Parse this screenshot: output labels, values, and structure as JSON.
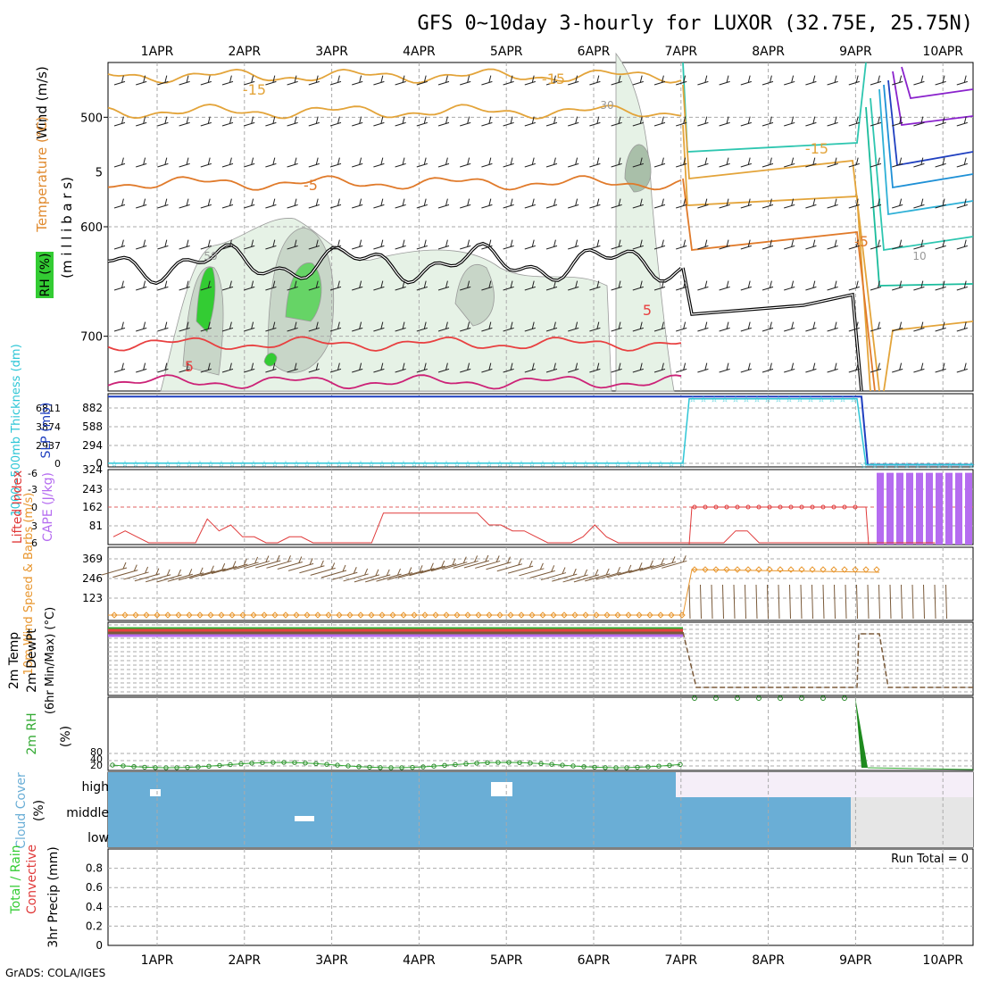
{
  "title": "GFS 0~10day 3-hourly for LUXOR (32.75E, 25.75N)",
  "credit": "GrADS: COLA/IGES",
  "colors": {
    "grid": "#aaaaaa",
    "rh_green": "#33cc33",
    "pale_green": "#e6f2e6",
    "mid_gray_green": "#c8d6c8",
    "thickness": "#2ec6d6",
    "slp": "#1f3fbf",
    "lifted": "#e03a3a",
    "cape": "#b56cf0",
    "wind_speed": "#e8962e",
    "barb": "#7a5a3a",
    "cloud": "#6aaed6",
    "precip_total": "#33cc33",
    "precip_conv": "#e03a3a"
  },
  "chart_data": [
    {
      "type": "line",
      "panel": "upper_air",
      "x_labels": [
        "1APR",
        "2APR",
        "3APR",
        "4APR",
        "5APR",
        "6APR",
        "7APR",
        "8APR",
        "9APR",
        "10APR"
      ],
      "ylabel_parts": [
        "Wind (m/s)",
        "Temperature (°C)",
        "RH (%)",
        "(m i l l i b a r s)"
      ],
      "y_ticks": [
        "500",
        "600",
        "700"
      ],
      "contour_labels": [
        "-15",
        "-15",
        "-15",
        "-5",
        "-5",
        "5",
        "5",
        "30",
        "50",
        "10"
      ],
      "ylim": [
        450,
        750
      ],
      "y_reversed": true,
      "grid": true
    },
    {
      "type": "line",
      "panel": "thickness_slp",
      "ylabel_parts": [
        "1000~500mb Thickness (dm)",
        "SLP (mb)"
      ],
      "left_ticks": [
        "6811",
        "3874",
        "2937",
        "0"
      ],
      "right_ticks": [
        "882",
        "588",
        "294",
        "0"
      ],
      "series": [
        {
          "name": "SLP",
          "values_pct": [
            0.96,
            0.96,
            0.96,
            0.96,
            0.96,
            0.96,
            0.96,
            0.96,
            0.96,
            0.03,
            0.03
          ]
        },
        {
          "name": "Thickness",
          "values_pct": [
            0.05,
            0.05,
            0.05,
            0.05,
            0.05,
            0.05,
            0.05,
            0.93,
            0.93,
            0.03,
            0.03
          ]
        }
      ]
    },
    {
      "type": "bar",
      "panel": "cape_li",
      "ylabel_parts": [
        "Lifted Index",
        "CAPE (J/kg)"
      ],
      "left_ticks": [
        "-6",
        "-3",
        "0",
        "3",
        "6"
      ],
      "right_ticks": [
        "324",
        "243",
        "162",
        "81"
      ],
      "lifted_index": [
        5,
        4,
        5,
        6,
        6,
        6,
        6,
        6,
        2,
        4,
        3,
        5,
        5,
        6,
        6,
        5,
        5,
        6,
        6,
        6,
        6,
        6,
        6,
        1,
        1,
        1,
        1,
        1,
        1,
        1,
        1,
        1,
        3,
        3,
        4,
        4,
        5,
        6,
        6,
        6,
        5,
        3,
        5,
        6,
        6,
        6,
        6,
        6,
        6,
        6,
        6,
        6,
        6,
        4,
        4,
        6,
        6,
        6,
        6,
        6,
        6,
        6,
        6,
        6,
        6,
        6,
        6,
        6,
        6,
        6,
        6,
        6,
        6,
        6,
        6,
        6,
        6,
        6,
        6,
        6,
        6,
        6,
        6,
        6,
        6,
        6,
        6,
        6,
        6,
        6,
        6,
        6,
        6,
        6,
        6,
        6,
        6,
        6,
        6,
        6,
        6,
        6,
        6,
        6,
        6,
        6,
        6,
        6,
        6,
        6,
        6,
        6,
        6,
        6,
        6,
        6,
        6,
        6,
        6,
        6,
        6,
        6,
        6,
        6,
        6,
        6,
        6,
        6,
        6,
        6,
        6,
        6,
        6,
        6,
        6,
        6,
        6,
        6,
        6,
        6
      ],
      "cape_bars": [
        310,
        310,
        310,
        310,
        310,
        310,
        310,
        310,
        310,
        310
      ]
    },
    {
      "type": "line",
      "panel": "wind10m",
      "ylabel_parts": [
        "10m Wind Speed & Barbs (m/s)"
      ],
      "y_ticks": [
        "369",
        "246",
        "123"
      ],
      "ylim": [
        0,
        400
      ]
    },
    {
      "type": "line",
      "panel": "temp2m",
      "ylabel_parts": [
        "2m Temp",
        "2m DewPt",
        "(6hr Min/Max) (°C)"
      ]
    },
    {
      "type": "line",
      "panel": "rh2m",
      "ylabel_parts": [
        "2m RH",
        "(%)"
      ],
      "y_ticks": [
        "80",
        "40",
        "20"
      ]
    },
    {
      "type": "area",
      "panel": "cloud",
      "ylabel_parts": [
        "Cloud Cover",
        "(%)"
      ],
      "levels": [
        "high",
        "middle",
        "low"
      ]
    },
    {
      "type": "bar",
      "panel": "precip",
      "ylabel_parts": [
        "Total / Rain",
        "Convective",
        "3hr Precip (mm)"
      ],
      "y_ticks": [
        "0.8",
        "0.6",
        "0.4",
        "0.2",
        "0"
      ],
      "ylim": [
        0,
        1
      ],
      "run_total": "Run Total = 0"
    }
  ]
}
